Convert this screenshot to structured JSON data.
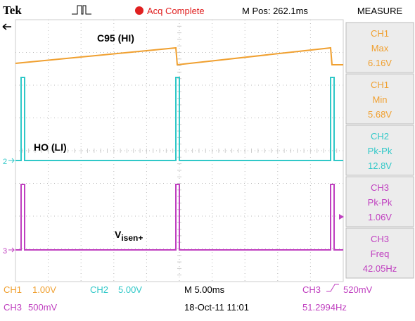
{
  "header": {
    "brand": "Tek",
    "status": "Acq Complete",
    "position": "M Pos: 262.1ms"
  },
  "measure": {
    "title": "MEASURE",
    "items": [
      {
        "channel": "CH1",
        "kind": "Max",
        "value": "6.16V"
      },
      {
        "channel": "CH1",
        "kind": "Min",
        "value": "5.68V"
      },
      {
        "channel": "CH2",
        "kind": "Pk-Pk",
        "value": "12.8V"
      },
      {
        "channel": "CH3",
        "kind": "Pk-Pk",
        "value": "1.06V"
      },
      {
        "channel": "CH3",
        "kind": "Freq",
        "value": "42.05Hz"
      }
    ]
  },
  "traces": {
    "ch1": "C95 (HI)",
    "ch2": "HO (LI)",
    "ch3_main": "V",
    "ch3_sub": "isen+",
    "ch2_marker": "2",
    "ch3_marker": "3"
  },
  "footer": {
    "ch1": "CH1",
    "ch1_scale": "1.00V",
    "ch2": "CH2",
    "ch2_scale": "5.00V",
    "time": "M 5.00ms",
    "trig_ch": "CH3",
    "trig_level": "520mV",
    "ch3": "CH3",
    "ch3_scale": "500mV",
    "date": "18-Oct-11 11:01",
    "freq": "51.2994Hz"
  }
}
